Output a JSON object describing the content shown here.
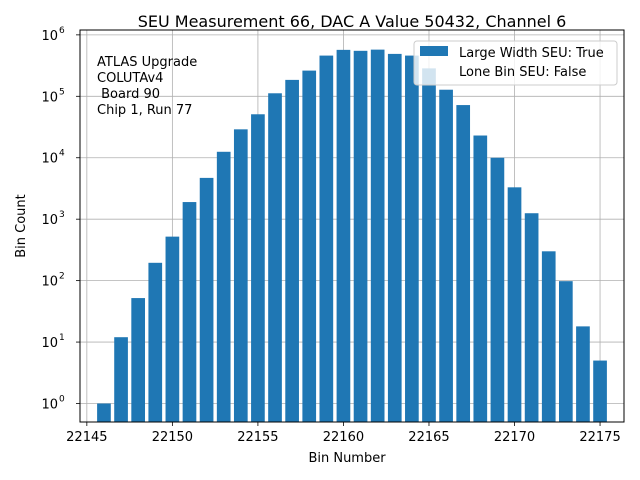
{
  "chart_data": {
    "type": "bar",
    "title": "SEU Measurement 66, DAC A Value 50432, Channel 6",
    "xlabel": "Bin Number",
    "ylabel": "Bin Count",
    "yscale": "log",
    "grid": true,
    "xlim": [
      22144.6,
      22176.4
    ],
    "ylim": [
      0.5,
      1200000
    ],
    "x_ticks": [
      22145,
      22150,
      22155,
      22160,
      22165,
      22170,
      22175
    ],
    "y_ticks": [
      {
        "base": "10",
        "exp": "0",
        "value": 1
      },
      {
        "base": "10",
        "exp": "1",
        "value": 10
      },
      {
        "base": "10",
        "exp": "2",
        "value": 100
      },
      {
        "base": "10",
        "exp": "3",
        "value": 1000
      },
      {
        "base": "10",
        "exp": "4",
        "value": 10000
      },
      {
        "base": "10",
        "exp": "5",
        "value": 100000
      },
      {
        "base": "10",
        "exp": "6",
        "value": 1000000
      }
    ],
    "bar_color": "#1f77b4",
    "x": [
      22146,
      22147,
      22148,
      22149,
      22150,
      22151,
      22152,
      22153,
      22154,
      22155,
      22156,
      22157,
      22158,
      22159,
      22160,
      22161,
      22162,
      22163,
      22164,
      22165,
      22166,
      22167,
      22168,
      22169,
      22170,
      22171,
      22172,
      22173,
      22174,
      22175
    ],
    "values": [
      1,
      12,
      52,
      195,
      520,
      1900,
      4700,
      12500,
      29000,
      51000,
      112000,
      185000,
      262000,
      460000,
      570000,
      550000,
      575000,
      490000,
      460000,
      285000,
      128000,
      72000,
      23000,
      10000,
      3300,
      1250,
      300,
      98,
      18,
      5
    ],
    "legend": {
      "placement": "top-right",
      "entries": [
        "Large Width SEU: True",
        "Lone Bin SEU: False"
      ]
    },
    "annotation": [
      "ATLAS Upgrade",
      "COLUTAv4",
      " Board 90",
      "Chip 1, Run 77"
    ]
  }
}
